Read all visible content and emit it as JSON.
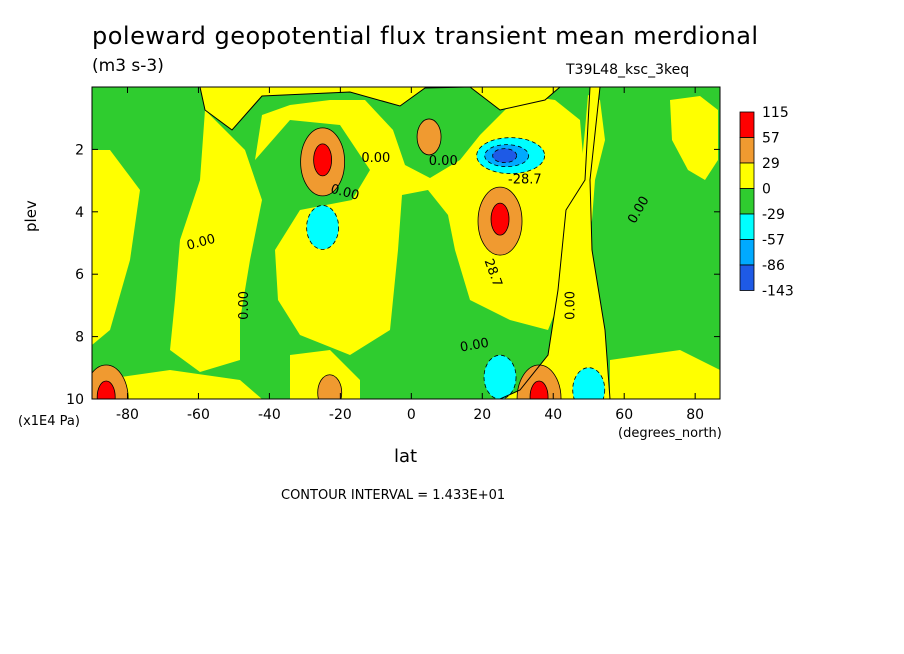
{
  "chart_data": {
    "type": "heatmap",
    "title": "poleward geopotential flux transient mean merdional",
    "units": "(m3 s-3)",
    "run_label": "T39L48_ksc_3keq",
    "xlabel": "lat",
    "ylabel": "plev",
    "x_units": "(degrees_north)",
    "y_units": "(x1E4 Pa)",
    "xlim": [
      -90,
      87
    ],
    "ylim": [
      10,
      0
    ],
    "x_ticks": [
      -80,
      -60,
      -40,
      -20,
      0,
      20,
      40,
      60,
      80
    ],
    "y_ticks": [
      2,
      4,
      6,
      8,
      10
    ],
    "contour_interval_text": "CONTOUR INTERVAL = 1.433E+01",
    "colorbar": {
      "labels": [
        "115",
        "57",
        "29",
        "0",
        "-29",
        "-57",
        "-86",
        "-143"
      ],
      "colors": [
        "#ff0000",
        "#f09a30",
        "#ffff00",
        "#2fcc2f",
        "#00ffff",
        "#00aaff",
        "#1e5ae6"
      ]
    },
    "features": [
      {
        "kind": "max",
        "lat": 25,
        "plev": 4.3,
        "level": "57 to 115"
      },
      {
        "kind": "max",
        "lat": -25,
        "plev": 2.4,
        "level": "57 to 115"
      },
      {
        "kind": "max",
        "lat": 5,
        "plev": 1.6,
        "level": "29 to 57"
      },
      {
        "kind": "max",
        "lat": -86,
        "plev": 10,
        "level": "57 to 115"
      },
      {
        "kind": "max",
        "lat": 36,
        "plev": 10,
        "level": "57 to 115"
      },
      {
        "kind": "max",
        "lat": -23,
        "plev": 9.8,
        "level": "29 to 57"
      },
      {
        "kind": "min",
        "lat": 28,
        "plev": 2.2,
        "level": "-86 to -143"
      },
      {
        "kind": "min",
        "lat": -25,
        "plev": 4.5,
        "level": "-29 to -57"
      },
      {
        "kind": "min",
        "lat": 25,
        "plev": 9.3,
        "level": "-29 to -57"
      },
      {
        "kind": "min",
        "lat": 50,
        "plev": 9.7,
        "level": "-29 to -57"
      }
    ],
    "contour_labels": [
      {
        "text": "0.00",
        "lat": -10,
        "plev": 2.4,
        "angle": 0
      },
      {
        "text": "0.00",
        "lat": 9,
        "plev": 2.5,
        "angle": 0
      },
      {
        "text": "0.00",
        "lat": -19,
        "plev": 3.5,
        "angle": 15
      },
      {
        "text": "0.00",
        "lat": -59,
        "plev": 5.1,
        "angle": -15
      },
      {
        "text": "0.00",
        "lat": -46,
        "plev": 7.0,
        "angle": -90
      },
      {
        "text": "0.00",
        "lat": 65,
        "plev": 4.0,
        "angle": -60
      },
      {
        "text": "0.00",
        "lat": 46,
        "plev": 7.0,
        "angle": -90
      },
      {
        "text": "0.00",
        "lat": 18,
        "plev": 8.4,
        "angle": -10
      },
      {
        "text": "-28.7",
        "lat": 32,
        "plev": 3.1,
        "angle": 0
      },
      {
        "text": "28.7",
        "lat": 22,
        "plev": 6.0,
        "angle": 70
      }
    ]
  }
}
